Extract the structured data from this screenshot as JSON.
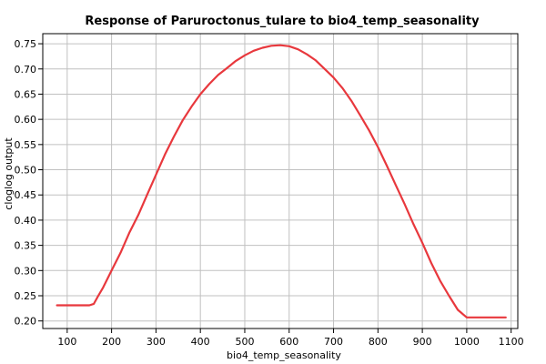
{
  "chart_data": {
    "type": "line",
    "title": "Response of Paruroctonus_tulare to bio4_temp_seasonality",
    "xlabel": "bio4_temp_seasonality",
    "ylabel": "cloglog output",
    "xlim": [
      45,
      1115
    ],
    "ylim": [
      0.185,
      0.77
    ],
    "xticks": [
      100,
      200,
      300,
      400,
      500,
      600,
      700,
      800,
      900,
      1000,
      1100
    ],
    "yticks": [
      0.2,
      0.25,
      0.3,
      0.35,
      0.4,
      0.45,
      0.5,
      0.55,
      0.6,
      0.65,
      0.7,
      0.75
    ],
    "grid": true,
    "series": [
      {
        "color": "#e8383d",
        "x": [
          77,
          100,
          130,
          150,
          160,
          170,
          180,
          200,
          220,
          240,
          260,
          280,
          300,
          320,
          340,
          360,
          380,
          400,
          420,
          440,
          460,
          480,
          500,
          520,
          540,
          560,
          580,
          600,
          620,
          640,
          660,
          680,
          700,
          720,
          740,
          760,
          780,
          800,
          820,
          840,
          860,
          880,
          900,
          920,
          940,
          960,
          980,
          1000,
          1010,
          1050,
          1088
        ],
        "y": [
          0.231,
          0.231,
          0.231,
          0.231,
          0.234,
          0.25,
          0.265,
          0.3,
          0.335,
          0.375,
          0.41,
          0.45,
          0.49,
          0.53,
          0.565,
          0.598,
          0.625,
          0.65,
          0.67,
          0.688,
          0.702,
          0.716,
          0.727,
          0.736,
          0.742,
          0.746,
          0.747,
          0.745,
          0.739,
          0.729,
          0.717,
          0.7,
          0.683,
          0.662,
          0.637,
          0.608,
          0.578,
          0.545,
          0.508,
          0.47,
          0.432,
          0.392,
          0.355,
          0.315,
          0.28,
          0.25,
          0.222,
          0.207,
          0.207,
          0.207,
          0.207
        ]
      }
    ]
  }
}
